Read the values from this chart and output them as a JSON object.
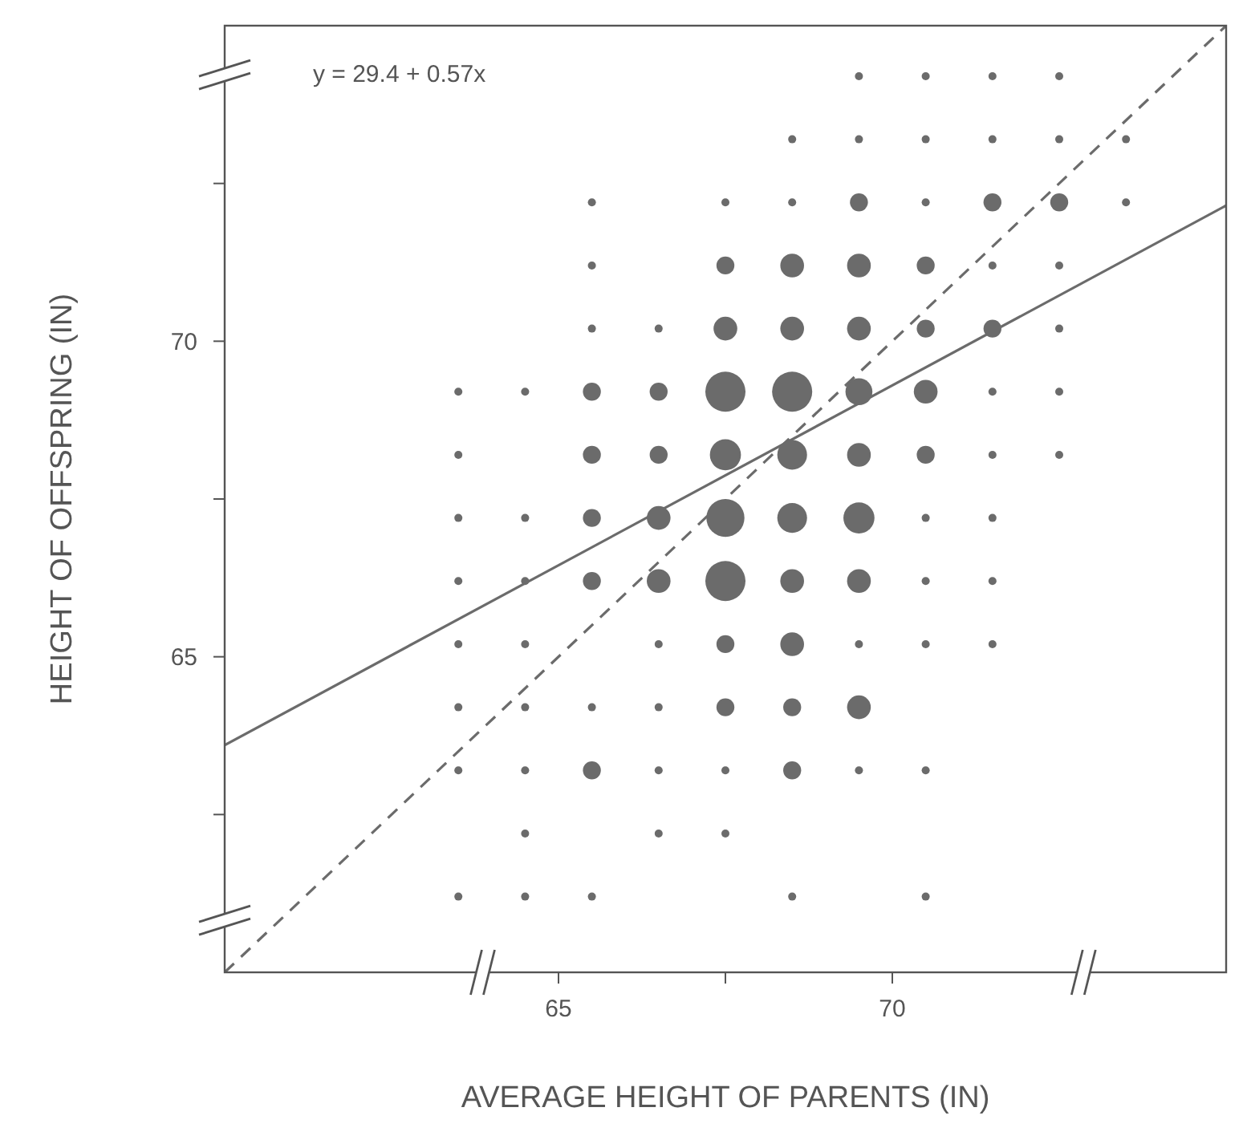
{
  "chart_data": {
    "type": "bubble",
    "xlabel": "AVERAGE HEIGHT OF PARENTS (IN)",
    "ylabel": "HEIGHT OF OFFSPRING (IN)",
    "annotations": [
      "y = 29.4 + 0.57x"
    ],
    "xlim": [
      60,
      75
    ],
    "ylim": [
      60,
      75
    ],
    "xticks": [
      65,
      {
        "value": 67.5,
        "label": null
      },
      70
    ],
    "yticks": [
      {
        "value": 62.5,
        "label": null
      },
      65,
      {
        "value": 67.5,
        "label": null
      },
      70,
      {
        "value": 72.5,
        "label": null
      }
    ],
    "grid": false,
    "legend": false,
    "series": [
      {
        "color": "#6b6b6b",
        "marker": "circle",
        "x": [
          69.5,
          70.5,
          71.5,
          72.5,
          68.5,
          69.5,
          70.5,
          71.5,
          72.5,
          73.5,
          65.5,
          67.5,
          68.5,
          69.5,
          70.5,
          71.5,
          72.5,
          73.5,
          65.5,
          67.5,
          68.5,
          69.5,
          70.5,
          71.5,
          72.5,
          65.5,
          66.5,
          67.5,
          68.5,
          69.5,
          70.5,
          71.5,
          72.5,
          63.5,
          64.5,
          65.5,
          66.5,
          67.5,
          68.5,
          69.5,
          70.5,
          71.5,
          72.5,
          63.5,
          65.5,
          66.5,
          67.5,
          68.5,
          69.5,
          70.5,
          71.5,
          72.5,
          63.5,
          64.5,
          65.5,
          66.5,
          67.5,
          68.5,
          69.5,
          70.5,
          71.5,
          63.5,
          64.5,
          65.5,
          66.5,
          67.5,
          68.5,
          69.5,
          70.5,
          71.5,
          63.5,
          64.5,
          66.5,
          67.5,
          68.5,
          69.5,
          70.5,
          71.5,
          63.5,
          64.5,
          65.5,
          66.5,
          67.5,
          68.5,
          69.5,
          63.5,
          64.5,
          65.5,
          66.5,
          67.5,
          68.5,
          69.5,
          70.5,
          64.5,
          66.5,
          67.5,
          63.5,
          64.5,
          65.5,
          68.5,
          70.5
        ],
        "values": [
          74.2,
          74.2,
          74.2,
          74.2,
          73.2,
          73.2,
          73.2,
          73.2,
          73.2,
          73.2,
          72.2,
          72.2,
          72.2,
          72.2,
          72.2,
          72.2,
          72.2,
          72.2,
          71.2,
          71.2,
          71.2,
          71.2,
          71.2,
          71.2,
          71.2,
          70.2,
          70.2,
          70.2,
          70.2,
          70.2,
          70.2,
          70.2,
          70.2,
          69.2,
          69.2,
          69.2,
          69.2,
          69.2,
          69.2,
          69.2,
          69.2,
          69.2,
          69.2,
          68.2,
          68.2,
          68.2,
          68.2,
          68.2,
          68.2,
          68.2,
          68.2,
          68.2,
          67.2,
          67.2,
          67.2,
          67.2,
          67.2,
          67.2,
          67.2,
          67.2,
          67.2,
          66.2,
          66.2,
          66.2,
          66.2,
          66.2,
          66.2,
          66.2,
          66.2,
          66.2,
          65.2,
          65.2,
          65.2,
          65.2,
          65.2,
          65.2,
          65.2,
          65.2,
          64.2,
          64.2,
          64.2,
          64.2,
          64.2,
          64.2,
          64.2,
          63.2,
          63.2,
          63.2,
          63.2,
          63.2,
          63.2,
          63.2,
          63.2,
          62.2,
          62.2,
          62.2,
          61.2,
          61.2,
          61.2,
          61.2,
          61.2
        ],
        "sizes": [
          0.04,
          0.04,
          0.04,
          0.04,
          0.04,
          0.04,
          0.04,
          0.04,
          0.04,
          0.04,
          0.04,
          0.04,
          0.04,
          0.2,
          0.04,
          0.2,
          0.2,
          0.04,
          0.04,
          0.2,
          0.35,
          0.35,
          0.2,
          0.04,
          0.04,
          0.04,
          0.04,
          0.35,
          0.35,
          0.35,
          0.2,
          0.2,
          0.04,
          0.04,
          0.04,
          0.2,
          0.2,
          1,
          1,
          0.45,
          0.35,
          0.04,
          0.04,
          0.04,
          0.2,
          0.2,
          0.6,
          0.55,
          0.35,
          0.2,
          0.04,
          0.04,
          0.04,
          0.04,
          0.2,
          0.35,
          0.9,
          0.55,
          0.6,
          0.04,
          0.04,
          0.04,
          0.04,
          0.2,
          0.35,
          1,
          0.35,
          0.35,
          0.04,
          0.04,
          0.04,
          0.04,
          0.04,
          0.2,
          0.35,
          0.04,
          0.04,
          0.04,
          0.04,
          0.04,
          0.04,
          0.04,
          0.2,
          0.2,
          0.35,
          0.04,
          0.04,
          0.2,
          0.04,
          0.04,
          0.2,
          0.04,
          0.04,
          0.04,
          0.04,
          0.04,
          0.04,
          0.04,
          0.04,
          0.04,
          0.04
        ]
      },
      {
        "type": "line",
        "color": "#6b6b6b",
        "marker": "none",
        "line_style": "dashed",
        "x": [
          60,
          75
        ],
        "values": [
          60,
          75
        ]
      },
      {
        "type": "line",
        "color": "#6b6b6b",
        "marker": "none",
        "line_style": "solid",
        "x": [
          60,
          75
        ],
        "values": [
          63.6,
          72.15
        ]
      }
    ]
  }
}
